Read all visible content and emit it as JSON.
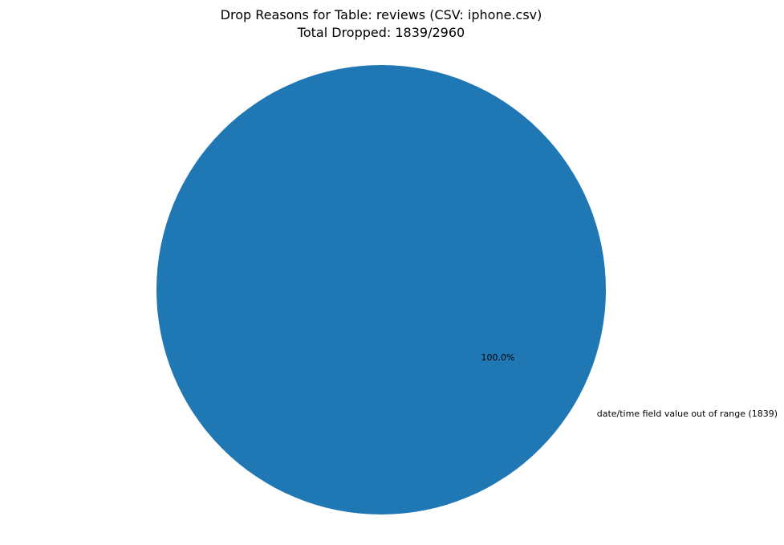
{
  "chart_data": {
    "type": "pie",
    "title": "Drop Reasons for Table: reviews (CSV: iphone.csv)",
    "subtitle": "Total Dropped: 1839/2960",
    "slices": [
      {
        "label": "date/time field value out of range (1839)",
        "value": 1839,
        "percent_label": "100.0%",
        "color": "#1f77b4"
      }
    ],
    "legend": "none"
  }
}
